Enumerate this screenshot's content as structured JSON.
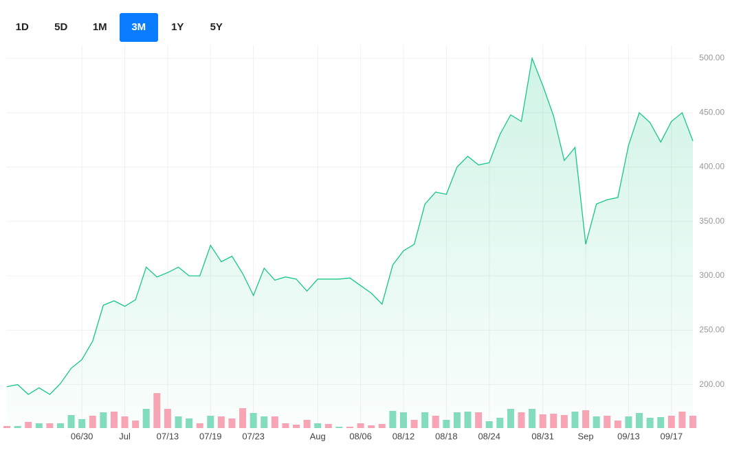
{
  "tabs": {
    "items": [
      "1D",
      "5D",
      "1M",
      "3M",
      "1Y",
      "5Y"
    ],
    "selected": 3
  },
  "chart_data": {
    "type": "area",
    "categories": [
      null,
      null,
      null,
      null,
      null,
      null,
      null,
      "06/30",
      null,
      null,
      null,
      "Jul",
      null,
      null,
      null,
      "07/13",
      null,
      null,
      null,
      "07/19",
      null,
      null,
      null,
      "07/23",
      null,
      null,
      null,
      null,
      null,
      "Aug",
      null,
      null,
      null,
      "08/06",
      null,
      null,
      null,
      "08/12",
      null,
      null,
      null,
      "08/18",
      null,
      null,
      null,
      "08/24",
      null,
      null,
      null,
      null,
      "08/31",
      null,
      null,
      null,
      "Sep",
      null,
      null,
      null,
      "09/13",
      null,
      null,
      null,
      "09/17",
      null,
      null
    ],
    "values": [
      198,
      200,
      191,
      197,
      191,
      201,
      215,
      223,
      240,
      273,
      277,
      272,
      278,
      308,
      299,
      303,
      308,
      300,
      300,
      328,
      313,
      318,
      302,
      282,
      307,
      296,
      299,
      297,
      286,
      297,
      297,
      297,
      298,
      291,
      284,
      274,
      310,
      323,
      329,
      366,
      377,
      375,
      400,
      410,
      402,
      404,
      430,
      448,
      442,
      500,
      475,
      447,
      406,
      418,
      329,
      366,
      370,
      372,
      420,
      450,
      441,
      423,
      442,
      450,
      424
    ],
    "color": "#16c784",
    "ylim": [
      160,
      512
    ],
    "yticks": [
      {
        "value": 200,
        "label": "200.00"
      },
      {
        "value": 250,
        "label": "250.00"
      },
      {
        "value": 300,
        "label": "300.00"
      },
      {
        "value": 350,
        "label": "350.00"
      },
      {
        "value": 400,
        "label": "400.00"
      },
      {
        "value": 450,
        "label": "450.00"
      },
      {
        "value": 500,
        "label": "500.00"
      }
    ],
    "grid": true,
    "volume": {
      "values": [
        3,
        3,
        9,
        7,
        7,
        7,
        19,
        13,
        18,
        23,
        24,
        17,
        11,
        28,
        51,
        28,
        17,
        14,
        7,
        18,
        17,
        14,
        29,
        22,
        17,
        17,
        7,
        5,
        12,
        7,
        6,
        2,
        2,
        7,
        4,
        6,
        25,
        23,
        12,
        23,
        18,
        12,
        23,
        24,
        23,
        10,
        15,
        28,
        23,
        28,
        20,
        21,
        19,
        24,
        26,
        17,
        18,
        11,
        17,
        22,
        15,
        16,
        18,
        24,
        18
      ],
      "up": [
        false,
        true,
        false,
        true,
        false,
        true,
        true,
        true,
        false,
        true,
        false,
        false,
        false,
        true,
        false,
        false,
        true,
        true,
        false,
        true,
        false,
        false,
        false,
        true,
        true,
        false,
        false,
        false,
        false,
        true,
        false,
        true,
        false,
        false,
        false,
        false,
        true,
        true,
        false,
        true,
        false,
        true,
        true,
        true,
        false,
        true,
        true,
        true,
        false,
        true,
        false,
        false,
        false,
        true,
        false,
        true,
        false,
        false,
        true,
        true,
        true,
        true,
        false,
        false,
        false
      ],
      "up_color": "#84dcbf",
      "down_color": "#f7a5b4",
      "ylim": [
        0,
        60
      ]
    }
  }
}
